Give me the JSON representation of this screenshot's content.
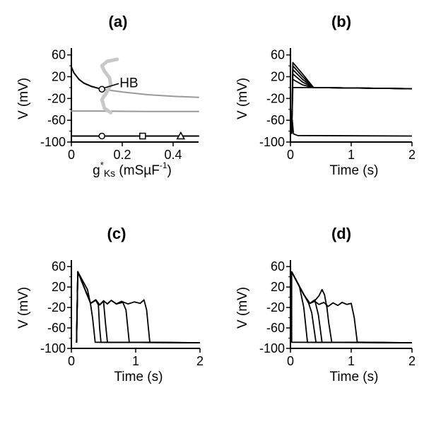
{
  "chart_data": [
    {
      "panel": "(a)",
      "type": "line",
      "xlabel_main": "g",
      "xlabel_sup": "*",
      "xlabel_sub": "Ks",
      "xlabel_units_pre": " (mSµF",
      "xlabel_units_sup": "-1",
      "xlabel_units_post": ")",
      "ylabel": "V (mV)",
      "xlim": [
        0,
        0.5
      ],
      "ylim": [
        -100,
        70
      ],
      "xticks": [
        0,
        0.2,
        0.4
      ],
      "xtick_labels": [
        "0",
        "0.2",
        "0.4"
      ],
      "yticks": [
        60,
        20,
        -20,
        -60,
        -100
      ],
      "ytick_labels": [
        "60",
        "20",
        "-20",
        "-60",
        "-100"
      ],
      "annotation": "HB",
      "annotation_point": [
        0.12,
        -3
      ],
      "curves": [
        {
          "role": "stable-depolarized",
          "color": "#000000",
          "points": [
            [
              0,
              38
            ],
            [
              0.01,
              27
            ],
            [
              0.03,
              15
            ],
            [
              0.05,
              8
            ],
            [
              0.08,
              2
            ],
            [
              0.12,
              -3
            ]
          ]
        },
        {
          "role": "unstable-depolarized",
          "color": "#999999",
          "points": [
            [
              0.12,
              -3
            ],
            [
              0.2,
              -8
            ],
            [
              0.3,
              -13
            ],
            [
              0.4,
              -16
            ],
            [
              0.5,
              -18
            ]
          ]
        },
        {
          "role": "unstable-middle",
          "color": "#999999",
          "points": [
            [
              0,
              -43
            ],
            [
              0.1,
              -43
            ],
            [
              0.2,
              -43.5
            ],
            [
              0.3,
              -44
            ],
            [
              0.4,
              -44
            ],
            [
              0.5,
              -44
            ]
          ]
        },
        {
          "role": "periodic-orbit",
          "color": "#c8c8c8",
          "points": [
            [
              0.18,
              52
            ],
            [
              0.14,
              48
            ],
            [
              0.12,
              40
            ],
            [
              0.13,
              30
            ],
            [
              0.15,
              18
            ],
            [
              0.155,
              5
            ],
            [
              0.14,
              -8
            ],
            [
              0.12,
              -22
            ],
            [
              0.13,
              -38
            ],
            [
              0.155,
              -46
            ]
          ]
        },
        {
          "role": "stable-rest",
          "color": "#000000",
          "points": [
            [
              0,
              -89
            ],
            [
              0.5,
              -89
            ]
          ]
        }
      ],
      "markers": [
        {
          "shape": "circle",
          "x": 0.12,
          "y": -3
        },
        {
          "shape": "circle",
          "x": 0.12,
          "y": -89
        },
        {
          "shape": "square",
          "x": 0.28,
          "y": -89
        },
        {
          "shape": "triangle",
          "x": 0.43,
          "y": -89
        }
      ]
    },
    {
      "panel": "(b)",
      "type": "line",
      "xlabel": "Time (s)",
      "ylabel": "V (mV)",
      "xlim": [
        0,
        2
      ],
      "ylim": [
        -100,
        70
      ],
      "xticks": [
        0,
        1,
        2
      ],
      "xtick_labels": [
        "0",
        "1",
        "2"
      ],
      "yticks": [
        60,
        20,
        -20,
        -60,
        -100
      ],
      "ytick_labels": [
        "60",
        "20",
        "-20",
        "-60",
        "-100"
      ],
      "series": [
        {
          "points": [
            [
              0.02,
              -85
            ],
            [
              0.04,
              46
            ],
            [
              0.2,
              25
            ],
            [
              0.38,
              0
            ],
            [
              2,
              -2
            ]
          ]
        },
        {
          "points": [
            [
              0.02,
              -85
            ],
            [
              0.04,
              40
            ],
            [
              0.2,
              20
            ],
            [
              0.38,
              0
            ],
            [
              2,
              -2
            ]
          ]
        },
        {
          "points": [
            [
              0.02,
              -85
            ],
            [
              0.04,
              33
            ],
            [
              0.2,
              15
            ],
            [
              0.38,
              0
            ],
            [
              2,
              -2
            ]
          ]
        },
        {
          "points": [
            [
              0.02,
              -85
            ],
            [
              0.04,
              25
            ],
            [
              0.2,
              10
            ],
            [
              0.38,
              0
            ],
            [
              2,
              -2
            ]
          ]
        },
        {
          "points": [
            [
              0.02,
              -85
            ],
            [
              0.04,
              15
            ],
            [
              0.2,
              5
            ],
            [
              0.38,
              0
            ],
            [
              2,
              -2
            ]
          ]
        },
        {
          "points": [
            [
              0.02,
              -85
            ],
            [
              0.04,
              0
            ],
            [
              0.38,
              0
            ],
            [
              2,
              -2
            ]
          ]
        },
        {
          "points": [
            [
              0.02,
              -70
            ],
            [
              0.03,
              -60
            ],
            [
              0.05,
              -85
            ],
            [
              0.12,
              -88
            ],
            [
              2,
              -89
            ]
          ]
        }
      ]
    },
    {
      "panel": "(c)",
      "type": "line",
      "xlabel": "Time (s)",
      "ylabel": "V (mV)",
      "xlim": [
        0,
        2
      ],
      "ylim": [
        -100,
        70
      ],
      "xticks": [
        0,
        1,
        2
      ],
      "xtick_labels": [
        "0",
        "1",
        "2"
      ],
      "yticks": [
        60,
        20,
        -20,
        -60,
        -100
      ],
      "ytick_labels": [
        "60",
        "20",
        "-20",
        "-60",
        "-100"
      ],
      "series": [
        {
          "points": [
            [
              0.08,
              -89
            ],
            [
              0.1,
              50
            ],
            [
              0.25,
              15
            ],
            [
              0.3,
              -15
            ],
            [
              0.33,
              -40
            ],
            [
              0.37,
              -88
            ],
            [
              2,
              -89
            ]
          ]
        },
        {
          "points": [
            [
              0.08,
              -89
            ],
            [
              0.1,
              50
            ],
            [
              0.3,
              -12
            ],
            [
              0.38,
              -6
            ],
            [
              0.42,
              -15
            ],
            [
              0.44,
              -60
            ],
            [
              0.46,
              -88
            ],
            [
              2,
              -89
            ]
          ]
        },
        {
          "points": [
            [
              0.08,
              -89
            ],
            [
              0.1,
              50
            ],
            [
              0.3,
              -12
            ],
            [
              0.38,
              -5
            ],
            [
              0.44,
              -15
            ],
            [
              0.5,
              -8
            ],
            [
              0.53,
              -50
            ],
            [
              0.56,
              -88
            ],
            [
              2,
              -89
            ]
          ]
        },
        {
          "points": [
            [
              0.08,
              -89
            ],
            [
              0.1,
              50
            ],
            [
              0.3,
              -12
            ],
            [
              0.38,
              -5
            ],
            [
              0.44,
              -15
            ],
            [
              0.5,
              -7
            ],
            [
              0.56,
              -13
            ],
            [
              0.62,
              -6
            ],
            [
              0.7,
              -13
            ],
            [
              0.8,
              -10
            ],
            [
              0.85,
              -25
            ],
            [
              0.9,
              -88
            ],
            [
              2,
              -89
            ]
          ]
        },
        {
          "points": [
            [
              0.08,
              -89
            ],
            [
              0.1,
              50
            ],
            [
              0.3,
              -12
            ],
            [
              0.38,
              -5
            ],
            [
              0.44,
              -15
            ],
            [
              0.5,
              -7
            ],
            [
              0.56,
              -13
            ],
            [
              0.62,
              -6
            ],
            [
              0.7,
              -13
            ],
            [
              0.78,
              -8
            ],
            [
              0.88,
              -13
            ],
            [
              0.98,
              -9
            ],
            [
              1.07,
              -12
            ],
            [
              1.13,
              -5
            ],
            [
              1.17,
              -25
            ],
            [
              1.22,
              -88
            ],
            [
              2,
              -89
            ]
          ]
        }
      ]
    },
    {
      "panel": "(d)",
      "type": "line",
      "xlabel": "Time (s)",
      "ylabel": "V (mV)",
      "xlim": [
        0,
        2
      ],
      "ylim": [
        -100,
        70
      ],
      "xticks": [
        0,
        1,
        2
      ],
      "xtick_labels": [
        "0",
        "1",
        "2"
      ],
      "yticks": [
        60,
        20,
        -20,
        -60,
        -100
      ],
      "ytick_labels": [
        "60",
        "20",
        "-20",
        "-60",
        "-100"
      ],
      "series": [
        {
          "points": [
            [
              0,
              -89
            ],
            [
              0.02,
              50
            ],
            [
              0.02,
              -88
            ],
            [
              2,
              -89
            ]
          ]
        },
        {
          "points": [
            [
              0.02,
              50
            ],
            [
              0.15,
              20
            ],
            [
              0.22,
              -20
            ],
            [
              0.28,
              -88
            ],
            [
              2,
              -89
            ]
          ]
        },
        {
          "points": [
            [
              0.02,
              50
            ],
            [
              0.2,
              10
            ],
            [
              0.3,
              -12
            ],
            [
              0.35,
              -30
            ],
            [
              0.42,
              -88
            ],
            [
              2,
              -89
            ]
          ]
        },
        {
          "points": [
            [
              0.02,
              50
            ],
            [
              0.22,
              5
            ],
            [
              0.32,
              -12
            ],
            [
              0.4,
              -5
            ],
            [
              0.46,
              -35
            ],
            [
              0.52,
              -88
            ],
            [
              2,
              -89
            ]
          ]
        },
        {
          "points": [
            [
              0.02,
              50
            ],
            [
              0.22,
              5
            ],
            [
              0.32,
              -12
            ],
            [
              0.4,
              -7
            ],
            [
              0.47,
              3
            ],
            [
              0.52,
              15
            ],
            [
              0.56,
              5
            ],
            [
              0.6,
              -20
            ],
            [
              0.63,
              -50
            ],
            [
              0.68,
              -88
            ],
            [
              2,
              -89
            ]
          ]
        },
        {
          "points": [
            [
              0.02,
              50
            ],
            [
              0.22,
              5
            ],
            [
              0.32,
              -12
            ],
            [
              0.4,
              -8
            ],
            [
              0.47,
              -14
            ],
            [
              0.55,
              -10
            ],
            [
              0.62,
              -18
            ],
            [
              0.7,
              -11
            ],
            [
              0.78,
              -16
            ],
            [
              0.85,
              -10
            ],
            [
              0.93,
              -14
            ],
            [
              1.0,
              -12
            ],
            [
              1.05,
              -40
            ],
            [
              1.1,
              -88
            ],
            [
              2,
              -89
            ]
          ]
        }
      ]
    }
  ]
}
